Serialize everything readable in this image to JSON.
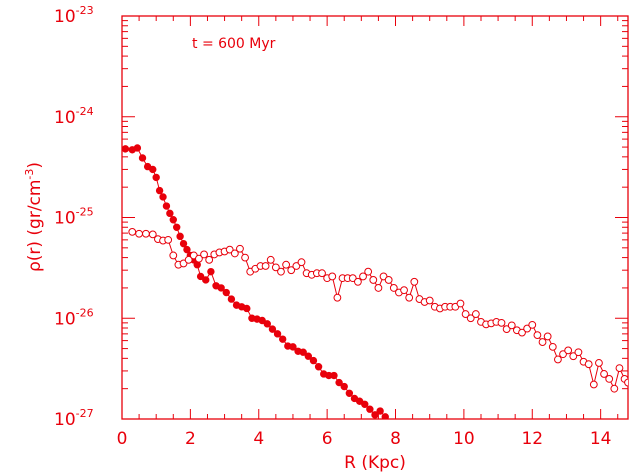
{
  "chart_data": {
    "type": "scatter",
    "yscale": "log",
    "xlim": [
      0,
      14.8
    ],
    "ylim": [
      1e-27,
      1e-23
    ],
    "xlabel": "R (Kpc)",
    "ylabel_prefix": "ρ(r) (gr/cm",
    "ylabel_exp": "-3",
    "ylabel_suffix": ")",
    "annotation": "t = 600 Myr",
    "color": "#e8000b",
    "x_ticks": [
      {
        "v": 0,
        "label": "0"
      },
      {
        "v": 2,
        "label": "2"
      },
      {
        "v": 4,
        "label": "4"
      },
      {
        "v": 6,
        "label": "6"
      },
      {
        "v": 8,
        "label": "8"
      },
      {
        "v": 10,
        "label": "10"
      },
      {
        "v": 12,
        "label": "12"
      },
      {
        "v": 14,
        "label": "14"
      }
    ],
    "y_ticks": [
      {
        "v": 1e-27,
        "base": "10",
        "exp": "-27"
      },
      {
        "v": 1e-26,
        "base": "10",
        "exp": "-26"
      },
      {
        "v": 1e-25,
        "base": "10",
        "exp": "-25"
      },
      {
        "v": 1e-24,
        "base": "10",
        "exp": "-24"
      },
      {
        "v": 1e-23,
        "base": "10",
        "exp": "-23"
      }
    ],
    "series": [
      {
        "marker": "filled-circle",
        "points": [
          [
            0.1,
            4.8e-25
          ],
          [
            0.3,
            4.7e-25
          ],
          [
            0.45,
            4.9e-25
          ],
          [
            0.6,
            3.9e-25
          ],
          [
            0.75,
            3.2e-25
          ],
          [
            0.9,
            3e-25
          ],
          [
            1.0,
            2.5e-25
          ],
          [
            1.1,
            1.85e-25
          ],
          [
            1.2,
            1.6e-25
          ],
          [
            1.3,
            1.3e-25
          ],
          [
            1.4,
            1.1e-25
          ],
          [
            1.5,
            9.5e-26
          ],
          [
            1.6,
            8e-26
          ],
          [
            1.7,
            6.5e-26
          ],
          [
            1.8,
            5.5e-26
          ],
          [
            1.9,
            4.8e-26
          ],
          [
            2.0,
            4.2e-26
          ],
          [
            2.1,
            3.8e-26
          ],
          [
            2.2,
            3.4e-26
          ],
          [
            2.3,
            2.6e-26
          ],
          [
            2.45,
            2.4e-26
          ],
          [
            2.6,
            2.9e-26
          ],
          [
            2.75,
            2.1e-26
          ],
          [
            2.9,
            2e-26
          ],
          [
            3.05,
            1.8e-26
          ],
          [
            3.2,
            1.55e-26
          ],
          [
            3.35,
            1.35e-26
          ],
          [
            3.5,
            1.3e-26
          ],
          [
            3.65,
            1.25e-26
          ],
          [
            3.8,
            1e-26
          ],
          [
            3.95,
            9.8e-27
          ],
          [
            4.1,
            9.5e-27
          ],
          [
            4.25,
            8.8e-27
          ],
          [
            4.4,
            7.8e-27
          ],
          [
            4.55,
            7e-27
          ],
          [
            4.7,
            6.2e-27
          ],
          [
            4.85,
            5.3e-27
          ],
          [
            5.0,
            5.2e-27
          ],
          [
            5.15,
            4.7e-27
          ],
          [
            5.3,
            4.6e-27
          ],
          [
            5.45,
            4.2e-27
          ],
          [
            5.6,
            3.8e-27
          ],
          [
            5.75,
            3.3e-27
          ],
          [
            5.9,
            2.8e-27
          ],
          [
            6.05,
            2.7e-27
          ],
          [
            6.2,
            2.7e-27
          ],
          [
            6.35,
            2.3e-27
          ],
          [
            6.5,
            2.1e-27
          ],
          [
            6.65,
            1.8e-27
          ],
          [
            6.8,
            1.6e-27
          ],
          [
            6.95,
            1.5e-27
          ],
          [
            7.1,
            1.4e-27
          ],
          [
            7.25,
            1.25e-27
          ],
          [
            7.4,
            1.1e-27
          ],
          [
            7.55,
            1.2e-27
          ],
          [
            7.7,
            1.05e-27
          ]
        ]
      },
      {
        "marker": "open-circle",
        "points": [
          [
            0.3,
            7.2e-26
          ],
          [
            0.5,
            6.9e-26
          ],
          [
            0.7,
            6.9e-26
          ],
          [
            0.9,
            6.8e-26
          ],
          [
            1.05,
            6.1e-26
          ],
          [
            1.2,
            5.9e-26
          ],
          [
            1.35,
            6e-26
          ],
          [
            1.5,
            4.2e-26
          ],
          [
            1.65,
            3.4e-26
          ],
          [
            1.8,
            3.5e-26
          ],
          [
            1.95,
            3.8e-26
          ],
          [
            2.1,
            4.2e-26
          ],
          [
            2.25,
            3.9e-26
          ],
          [
            2.4,
            4.3e-26
          ],
          [
            2.55,
            3.8e-26
          ],
          [
            2.7,
            4.3e-26
          ],
          [
            2.85,
            4.5e-26
          ],
          [
            3.0,
            4.6e-26
          ],
          [
            3.15,
            4.8e-26
          ],
          [
            3.3,
            4.4e-26
          ],
          [
            3.45,
            4.9e-26
          ],
          [
            3.6,
            4e-26
          ],
          [
            3.75,
            2.9e-26
          ],
          [
            3.9,
            3.1e-26
          ],
          [
            4.05,
            3.3e-26
          ],
          [
            4.2,
            3.3e-26
          ],
          [
            4.35,
            3.8e-26
          ],
          [
            4.5,
            3.2e-26
          ],
          [
            4.65,
            2.9e-26
          ],
          [
            4.8,
            3.4e-26
          ],
          [
            4.95,
            3e-26
          ],
          [
            5.1,
            3.3e-26
          ],
          [
            5.25,
            3.6e-26
          ],
          [
            5.4,
            2.8e-26
          ],
          [
            5.55,
            2.7e-26
          ],
          [
            5.7,
            2.8e-26
          ],
          [
            5.85,
            2.8e-26
          ],
          [
            6.0,
            2.5e-26
          ],
          [
            6.15,
            2.6e-26
          ],
          [
            6.3,
            1.6e-26
          ],
          [
            6.45,
            2.5e-26
          ],
          [
            6.6,
            2.5e-26
          ],
          [
            6.75,
            2.5e-26
          ],
          [
            6.9,
            2.3e-26
          ],
          [
            7.05,
            2.6e-26
          ],
          [
            7.2,
            2.9e-26
          ],
          [
            7.35,
            2.4e-26
          ],
          [
            7.5,
            2e-26
          ],
          [
            7.65,
            2.6e-26
          ],
          [
            7.8,
            2.4e-26
          ],
          [
            7.95,
            2e-26
          ],
          [
            8.1,
            1.8e-26
          ],
          [
            8.25,
            1.9e-26
          ],
          [
            8.4,
            1.6e-26
          ],
          [
            8.55,
            2.3e-26
          ],
          [
            8.7,
            1.55e-26
          ],
          [
            8.85,
            1.45e-26
          ],
          [
            9.0,
            1.5e-26
          ],
          [
            9.15,
            1.3e-26
          ],
          [
            9.3,
            1.25e-26
          ],
          [
            9.45,
            1.3e-26
          ],
          [
            9.6,
            1.3e-26
          ],
          [
            9.75,
            1.3e-26
          ],
          [
            9.9,
            1.4e-26
          ],
          [
            10.05,
            1.1e-26
          ],
          [
            10.2,
            1e-26
          ],
          [
            10.35,
            1.1e-26
          ],
          [
            10.5,
            9.2e-27
          ],
          [
            10.65,
            8.7e-27
          ],
          [
            10.8,
            8.9e-27
          ],
          [
            10.95,
            9.2e-27
          ],
          [
            11.1,
            9e-27
          ],
          [
            11.25,
            7.8e-27
          ],
          [
            11.4,
            8.5e-27
          ],
          [
            11.55,
            7.6e-27
          ],
          [
            11.7,
            7.2e-27
          ],
          [
            11.85,
            7.9e-27
          ],
          [
            12.0,
            8.6e-27
          ],
          [
            12.15,
            6.8e-27
          ],
          [
            12.3,
            5.8e-27
          ],
          [
            12.45,
            6.6e-27
          ],
          [
            12.6,
            5.2e-27
          ],
          [
            12.75,
            3.9e-27
          ],
          [
            12.9,
            4.4e-27
          ],
          [
            13.05,
            4.8e-27
          ],
          [
            13.2,
            4.2e-27
          ],
          [
            13.35,
            4.6e-27
          ],
          [
            13.5,
            3.7e-27
          ],
          [
            13.65,
            3.5e-27
          ],
          [
            13.8,
            2.2e-27
          ],
          [
            13.95,
            3.6e-27
          ],
          [
            14.1,
            2.8e-27
          ],
          [
            14.25,
            2.5e-27
          ],
          [
            14.4,
            2e-27
          ],
          [
            14.55,
            3.2e-27
          ],
          [
            14.7,
            2.5e-27
          ],
          [
            14.8,
            2.3e-27
          ]
        ]
      }
    ]
  }
}
